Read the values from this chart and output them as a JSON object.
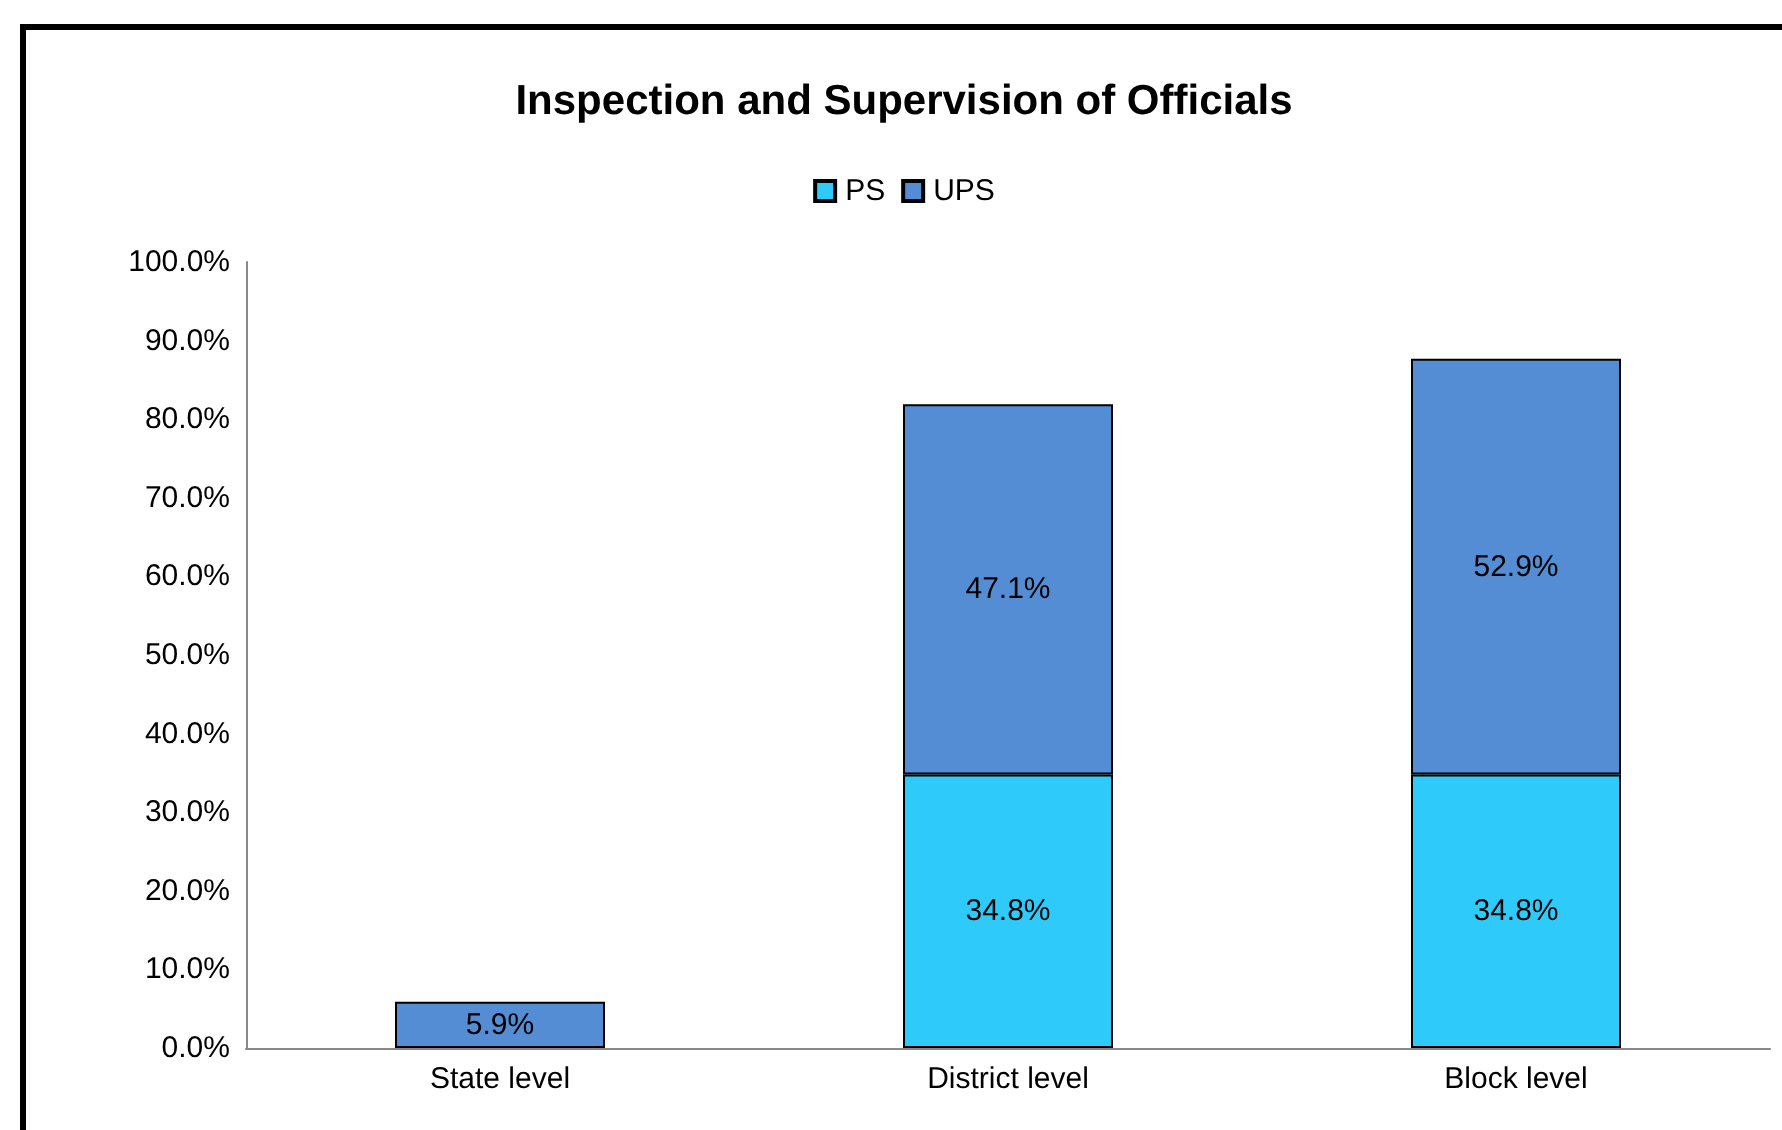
{
  "chart_data": {
    "type": "bar",
    "title": "Inspection and Supervision of Officials",
    "categories": [
      "State level",
      "District level",
      "Block level"
    ],
    "stacked": true,
    "legend": "top",
    "series": [
      {
        "name": "PS",
        "color": "#2ecbfa",
        "values": [
          null,
          34.8,
          34.8
        ],
        "value_labels": [
          null,
          "34.8%",
          "34.8%"
        ]
      },
      {
        "name": "UPS",
        "color": "#548dd4",
        "values": [
          5.9,
          47.1,
          52.9
        ],
        "value_labels": [
          "5.9%",
          "47.1%",
          "52.9%"
        ]
      }
    ],
    "ylim": [
      0,
      100
    ],
    "yticks": [
      {
        "value": 0,
        "label": "0.0%"
      },
      {
        "value": 10,
        "label": "10.0%"
      },
      {
        "value": 20,
        "label": "20.0%"
      },
      {
        "value": 30,
        "label": "30.0%"
      },
      {
        "value": 40,
        "label": "40.0%"
      },
      {
        "value": 50,
        "label": "50.0%"
      },
      {
        "value": 60,
        "label": "60.0%"
      },
      {
        "value": 70,
        "label": "70.0%"
      },
      {
        "value": 80,
        "label": "80.0%"
      },
      {
        "value": 90,
        "label": "90.0%"
      },
      {
        "value": 100,
        "label": "100.0%"
      }
    ],
    "grid": false
  }
}
